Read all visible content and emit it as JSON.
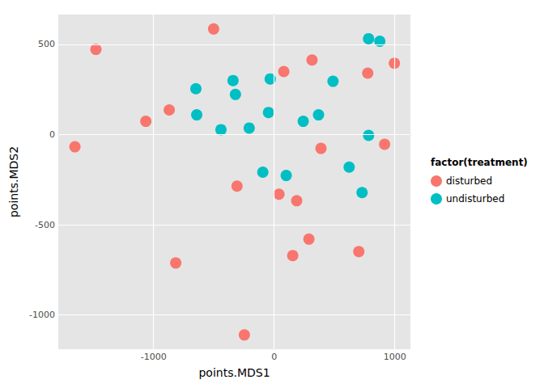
{
  "chart_data": {
    "type": "scatter",
    "xlabel": "points.MDS1",
    "ylabel": "points.MDS2",
    "legend_title": "factor(treatment)",
    "xlim": [
      -1790,
      1130
    ],
    "xticks": [
      -1000,
      0,
      1000
    ],
    "ylim": [
      -1190,
      665
    ],
    "yticks": [
      -1000,
      -500,
      0,
      500
    ],
    "grid": true,
    "legend": "right",
    "marker": "circle",
    "series": [
      {
        "name": "disturbed",
        "color": "#F8766D",
        "x": [
          -1652,
          -1478,
          -1064,
          -870,
          -816,
          -502,
          -308,
          -247,
          40,
          80,
          154,
          187,
          288,
          314,
          388,
          702,
          776,
          916,
          997
        ],
        "values": [
          -68,
          472,
          73,
          136,
          -712,
          585,
          -286,
          -1111,
          -331,
          349,
          -671,
          -367,
          -580,
          413,
          -77,
          -649,
          340,
          -54,
          395
        ]
      },
      {
        "name": "undisturbed",
        "color": "#00BFC4",
        "x": [
          -649,
          -642,
          -441,
          -341,
          -321,
          -207,
          -94,
          -33,
          -47,
          100,
          241,
          368,
          488,
          622,
          729,
          783,
          783,
          876
        ],
        "values": [
          254,
          109,
          27,
          299,
          222,
          36,
          -209,
          308,
          122,
          -227,
          73,
          109,
          295,
          -181,
          -322,
          -5,
          531,
          517
        ]
      }
    ]
  }
}
